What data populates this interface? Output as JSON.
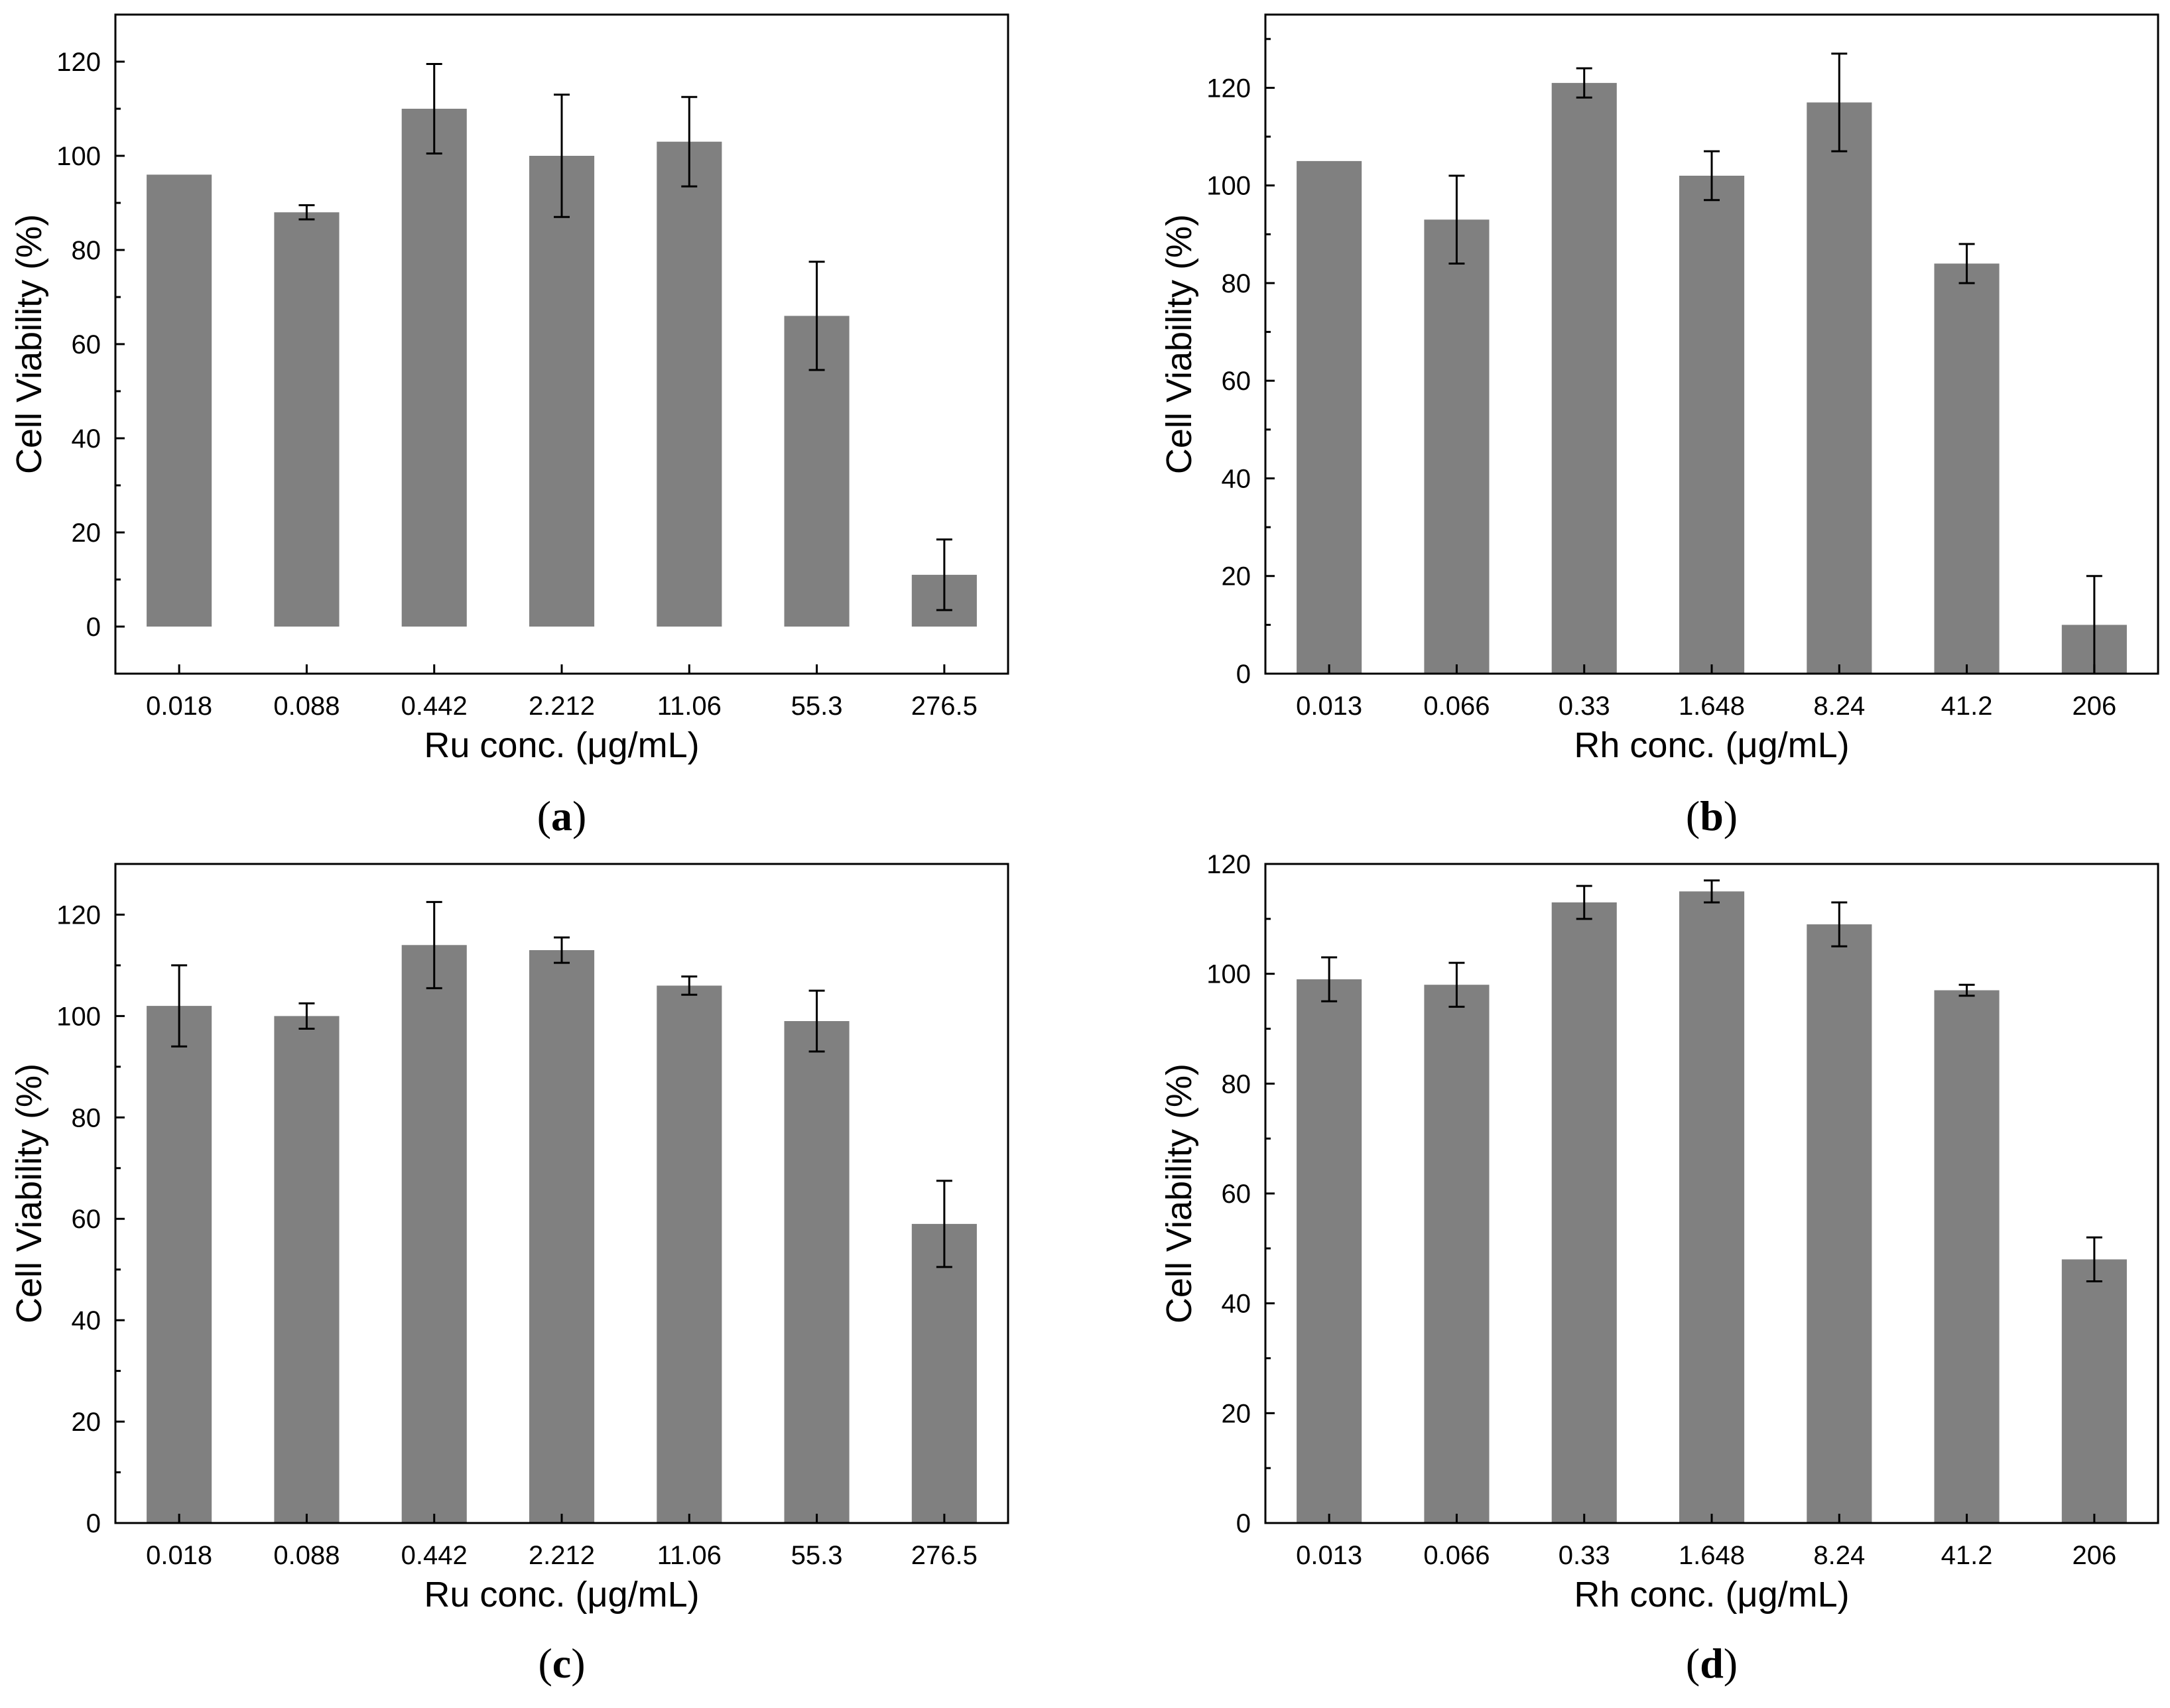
{
  "chart_data": [
    {
      "id": "a",
      "type": "bar",
      "panel_label": "a",
      "xlabel": "Ru conc. (μg/mL)",
      "ylabel": "Cell Viability (%)",
      "categories": [
        "0.018",
        "0.088",
        "0.442",
        "2.212",
        "11.06",
        "55.3",
        "276.5"
      ],
      "values": [
        96,
        88,
        110,
        100,
        103,
        66,
        11
      ],
      "errors": [
        0,
        1.5,
        9.5,
        13,
        9.5,
        11.5,
        7.5
      ],
      "ylim": [
        -10,
        130
      ],
      "yticks": [
        0,
        20,
        40,
        60,
        80,
        100,
        120
      ]
    },
    {
      "id": "b",
      "type": "bar",
      "panel_label": "b",
      "xlabel": "Rh conc. (μg/mL)",
      "ylabel": "Cell Viability (%)",
      "categories": [
        "0.013",
        "0.066",
        "0.33",
        "1.648",
        "8.24",
        "41.2",
        "206"
      ],
      "values": [
        105,
        93,
        121,
        102,
        117,
        84,
        10
      ],
      "errors": [
        0,
        9,
        3,
        5,
        10,
        4,
        10
      ],
      "ylim": [
        0,
        135
      ],
      "yticks": [
        0,
        20,
        40,
        60,
        80,
        100,
        120
      ]
    },
    {
      "id": "c",
      "type": "bar",
      "panel_label": "c",
      "xlabel": "Ru conc. (μg/mL)",
      "ylabel": "Cell Viability (%)",
      "categories": [
        "0.018",
        "0.088",
        "0.442",
        "2.212",
        "11.06",
        "55.3",
        "276.5"
      ],
      "values": [
        102,
        100,
        114,
        113,
        106,
        99,
        59
      ],
      "errors": [
        8,
        2.5,
        8.5,
        2.5,
        1.8,
        6,
        8.5
      ],
      "ylim": [
        0,
        130
      ],
      "yticks": [
        0,
        20,
        40,
        60,
        80,
        100,
        120
      ]
    },
    {
      "id": "d",
      "type": "bar",
      "panel_label": "d",
      "xlabel": "Rh conc. (μg/mL)",
      "ylabel": "Cell Viability (%)",
      "categories": [
        "0.013",
        "0.066",
        "0.33",
        "1.648",
        "8.24",
        "41.2",
        "206"
      ],
      "values": [
        99,
        98,
        113,
        115,
        109,
        97,
        48
      ],
      "errors": [
        4,
        4,
        3,
        2,
        4,
        1,
        4
      ],
      "ylim": [
        0,
        120
      ],
      "yticks": [
        0,
        20,
        40,
        60,
        80,
        100,
        120
      ]
    }
  ]
}
